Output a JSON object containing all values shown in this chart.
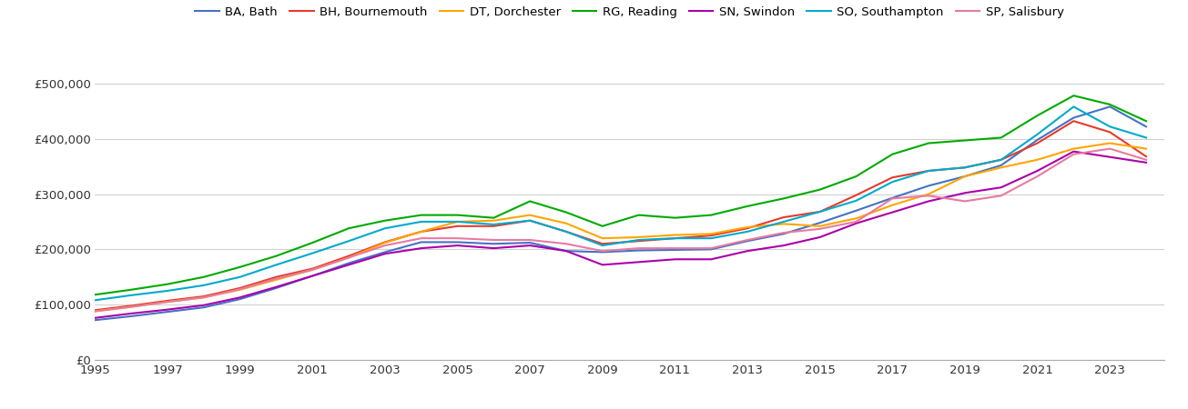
{
  "legend_entries": [
    "BA, Bath",
    "BH, Bournemouth",
    "DT, Dorchester",
    "RG, Reading",
    "SN, Swindon",
    "SO, Southampton",
    "SP, Salisbury"
  ],
  "colors": {
    "BA": "#4472c4",
    "BH": "#e8392a",
    "DT": "#ffa500",
    "RG": "#00aa00",
    "SN": "#aa00aa",
    "SO": "#00aacc",
    "SP": "#e87a9f"
  },
  "years": [
    1995,
    1996,
    1997,
    1998,
    1999,
    2000,
    2001,
    2002,
    2003,
    2004,
    2005,
    2006,
    2007,
    2008,
    2009,
    2010,
    2011,
    2012,
    2013,
    2014,
    2015,
    2016,
    2017,
    2018,
    2019,
    2020,
    2021,
    2022,
    2023,
    2024
  ],
  "BA": [
    72000,
    79000,
    87000,
    95000,
    110000,
    130000,
    152000,
    175000,
    195000,
    213000,
    213000,
    210000,
    212000,
    197000,
    195000,
    198000,
    199000,
    200000,
    215000,
    228000,
    248000,
    270000,
    293000,
    315000,
    332000,
    352000,
    398000,
    438000,
    458000,
    422000
  ],
  "BH": [
    90000,
    98000,
    107000,
    115000,
    130000,
    150000,
    165000,
    188000,
    213000,
    232000,
    242000,
    242000,
    252000,
    232000,
    210000,
    215000,
    220000,
    225000,
    238000,
    258000,
    268000,
    298000,
    330000,
    342000,
    348000,
    362000,
    392000,
    432000,
    412000,
    368000
  ],
  "DT": [
    88000,
    96000,
    105000,
    113000,
    127000,
    145000,
    163000,
    185000,
    212000,
    232000,
    250000,
    252000,
    262000,
    247000,
    220000,
    222000,
    226000,
    228000,
    240000,
    246000,
    242000,
    256000,
    280000,
    300000,
    332000,
    348000,
    362000,
    382000,
    392000,
    382000
  ],
  "RG": [
    118000,
    127000,
    137000,
    150000,
    168000,
    188000,
    212000,
    238000,
    252000,
    262000,
    262000,
    257000,
    287000,
    267000,
    242000,
    262000,
    257000,
    262000,
    278000,
    292000,
    308000,
    332000,
    372000,
    392000,
    397000,
    402000,
    442000,
    478000,
    462000,
    432000
  ],
  "SN": [
    76000,
    84000,
    91000,
    99000,
    113000,
    132000,
    152000,
    172000,
    192000,
    202000,
    207000,
    202000,
    207000,
    197000,
    172000,
    177000,
    182000,
    182000,
    197000,
    207000,
    222000,
    247000,
    267000,
    287000,
    302000,
    312000,
    342000,
    377000,
    367000,
    357000
  ],
  "SO": [
    108000,
    117000,
    125000,
    135000,
    150000,
    172000,
    193000,
    215000,
    238000,
    250000,
    250000,
    245000,
    252000,
    232000,
    207000,
    217000,
    220000,
    220000,
    232000,
    250000,
    268000,
    288000,
    322000,
    342000,
    348000,
    362000,
    408000,
    458000,
    422000,
    402000
  ],
  "SP": [
    88000,
    96000,
    105000,
    113000,
    128000,
    147000,
    163000,
    185000,
    207000,
    220000,
    220000,
    217000,
    217000,
    210000,
    197000,
    202000,
    202000,
    202000,
    217000,
    230000,
    237000,
    250000,
    292000,
    297000,
    287000,
    297000,
    332000,
    372000,
    382000,
    362000
  ],
  "ylim": [
    0,
    540000
  ],
  "yticks": [
    0,
    100000,
    200000,
    300000,
    400000,
    500000
  ],
  "background_color": "#ffffff",
  "grid_color": "#d0d0d0"
}
